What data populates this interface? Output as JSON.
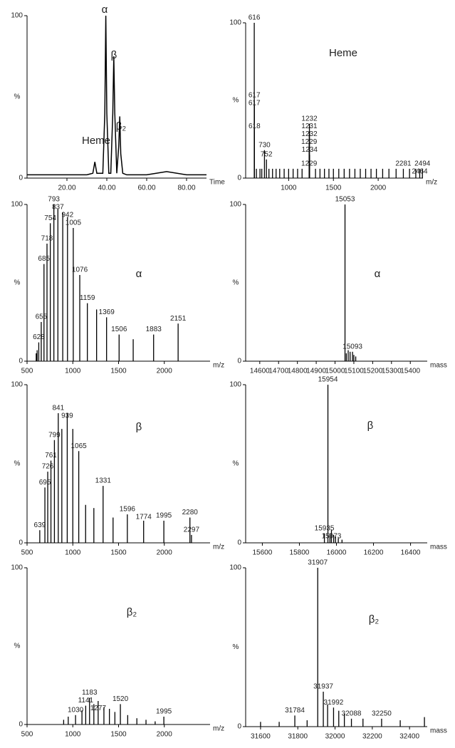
{
  "chart_data": [
    {
      "type": "line",
      "xlabel": "Time",
      "ylabel": "%",
      "annotations": [
        "α",
        "β",
        "β₂",
        "Heme"
      ],
      "xlim": [
        0,
        90
      ],
      "ylim": [
        0,
        100
      ],
      "xticks": [
        {
          "value": 20,
          "label": "20.00"
        },
        {
          "value": 40,
          "label": "40.00"
        },
        {
          "value": 60,
          "label": "60.00"
        },
        {
          "value": 80,
          "label": "80.00"
        }
      ],
      "yticks": [
        0,
        100
      ],
      "series": [
        {
          "color": "#000000",
          "x": [
            0,
            10,
            20,
            30,
            33,
            34,
            35,
            38,
            39,
            39.5,
            40,
            41,
            42,
            43,
            43.5,
            44,
            45,
            46,
            46.5,
            47,
            48,
            50,
            60,
            70,
            80,
            90
          ],
          "values": [
            2,
            2,
            2,
            2,
            3,
            10,
            3,
            3,
            40,
            100,
            40,
            3,
            3,
            40,
            75,
            40,
            3,
            20,
            38,
            15,
            3,
            2,
            2,
            4,
            2,
            2
          ]
        }
      ]
    },
    {
      "type": "stick",
      "xlabel": "m/z",
      "ylabel": "%",
      "annotations": [
        "Heme"
      ],
      "xlim": [
        520,
        2500
      ],
      "ylim": [
        0,
        100
      ],
      "xticks": [
        1000,
        1500,
        2000
      ],
      "yticks": [
        0,
        100
      ],
      "series": [
        {
          "color": "#000000",
          "labeled": true,
          "x": [
            616,
            617,
            617,
            618,
            730,
            752,
            1232,
            1231,
            1232,
            1229,
            1234,
            1229,
            2281,
            2464,
            2494
          ],
          "values": [
            100,
            50,
            48,
            30,
            18,
            12,
            35,
            30,
            30,
            22,
            15,
            6,
            6,
            6,
            6
          ]
        },
        {
          "color": "#000000",
          "labeled": false,
          "x": [
            640,
            680,
            700,
            780,
            820,
            860,
            900,
            950,
            1000,
            1050,
            1100,
            1150,
            1300,
            1350,
            1400,
            1450,
            1500,
            1560,
            1620,
            1680,
            1740,
            1800,
            1860,
            1920,
            1980,
            2050,
            2120,
            2200,
            2350,
            2420
          ],
          "values": [
            6,
            6,
            6,
            6,
            6,
            6,
            6,
            6,
            6,
            6,
            6,
            6,
            6,
            6,
            6,
            6,
            6,
            6,
            6,
            6,
            6,
            6,
            6,
            6,
            6,
            6,
            6,
            6,
            6,
            6
          ]
        }
      ]
    },
    {
      "type": "stick",
      "xlabel": "m/z",
      "ylabel": "%",
      "annotations": [
        "α"
      ],
      "xlim": [
        500,
        2500
      ],
      "ylim": [
        0,
        100
      ],
      "xticks": [
        500,
        1000,
        1500,
        2000
      ],
      "yticks": [
        0,
        100
      ],
      "series": [
        {
          "color": "#000000",
          "labeled": true,
          "x": [
            628,
            655,
            685,
            718,
            754,
            793,
            837,
            942,
            1005,
            1076,
            1159,
            1369,
            1506,
            1883,
            2151
          ],
          "values": [
            12,
            25,
            62,
            75,
            88,
            100,
            97,
            92,
            85,
            55,
            37,
            28,
            17,
            17,
            24
          ]
        },
        {
          "color": "#000000",
          "labeled": false,
          "x": [
            890,
            1260,
            1660,
            600,
            610
          ],
          "values": [
            95,
            33,
            14,
            5,
            7
          ]
        }
      ]
    },
    {
      "type": "stick",
      "xlabel": "mass",
      "ylabel": "%",
      "annotations": [
        "α"
      ],
      "xlim": [
        14525,
        15490
      ],
      "ylim": [
        0,
        100
      ],
      "xticks": [
        14600,
        14700,
        14800,
        14900,
        15000,
        15100,
        15200,
        15300,
        15400
      ],
      "yticks": [
        0,
        100
      ],
      "series": [
        {
          "color": "#000000",
          "labeled": true,
          "x": [
            15053,
            15093
          ],
          "values": [
            100,
            6
          ]
        },
        {
          "color": "#000000",
          "labeled": false,
          "x": [
            15060,
            15070,
            15080,
            15100,
            15110
          ],
          "values": [
            5,
            7,
            6,
            4,
            3
          ]
        }
      ]
    },
    {
      "type": "stick",
      "xlabel": "m/z",
      "ylabel": "%",
      "annotations": [
        "β"
      ],
      "xlim": [
        500,
        2500
      ],
      "ylim": [
        0,
        100
      ],
      "xticks": [
        500,
        1000,
        1500,
        2000
      ],
      "yticks": [
        0,
        100
      ],
      "series": [
        {
          "color": "#000000",
          "labeled": true,
          "x": [
            639,
            695,
            726,
            761,
            799,
            841,
            939,
            1065,
            1331,
            1596,
            1774,
            1995,
            2280,
            2297
          ],
          "values": [
            8,
            35,
            45,
            52,
            65,
            82,
            82,
            58,
            36,
            18,
            14,
            14,
            16,
            5
          ]
        },
        {
          "color": "#000000",
          "labeled": false,
          "x": [
            880,
            1000,
            1140,
            1230,
            1440
          ],
          "values": [
            72,
            72,
            24,
            22,
            16
          ]
        }
      ]
    },
    {
      "type": "stick",
      "xlabel": "mass",
      "ylabel": "%",
      "annotations": [
        "β"
      ],
      "xlim": [
        15510,
        16490
      ],
      "ylim": [
        0,
        100
      ],
      "xticks": [
        15600,
        15800,
        16000,
        16200,
        16400
      ],
      "yticks": [
        0,
        100
      ],
      "series": [
        {
          "color": "#000000",
          "labeled": true,
          "x": [
            15954,
            15935,
            15973
          ],
          "values": [
            100,
            6,
            8
          ]
        },
        {
          "color": "#000000",
          "labeled": false,
          "x": [
            15965,
            15985,
            15995,
            16010,
            16030
          ],
          "values": [
            6,
            5,
            4,
            3,
            2
          ]
        }
      ]
    },
    {
      "type": "stick",
      "xlabel": "m/z",
      "ylabel": "%",
      "annotations": [
        "β₂"
      ],
      "xlim": [
        500,
        2500
      ],
      "ylim": [
        0,
        100
      ],
      "xticks": [
        500,
        1000,
        1500,
        2000
      ],
      "yticks": [
        0,
        100
      ],
      "series": [
        {
          "color": "#000000",
          "labeled": true,
          "x": [
            1030,
            1141,
            1183,
            1277,
            1520,
            1995
          ],
          "values": [
            6,
            12,
            17,
            15,
            13,
            5
          ]
        },
        {
          "color": "#000000",
          "labeled": false,
          "x": [
            900,
            950,
            1100,
            1230,
            1340,
            1400,
            1460,
            1600,
            1700,
            1800,
            1900
          ],
          "values": [
            3,
            5,
            9,
            13,
            11,
            10,
            8,
            6,
            4,
            3,
            2
          ]
        }
      ]
    },
    {
      "type": "stick",
      "xlabel": "mass",
      "ylabel": "%",
      "annotations": [
        "β₂"
      ],
      "xlim": [
        31520,
        32495
      ],
      "ylim": [
        0,
        100
      ],
      "xticks": [
        31600,
        31800,
        32000,
        32200,
        32400
      ],
      "yticks": [
        0,
        100
      ],
      "series": [
        {
          "color": "#000000",
          "labeled": true,
          "x": [
            31907,
            31784,
            31937,
            31992,
            32088,
            32250
          ],
          "values": [
            100,
            7,
            22,
            12,
            5,
            5
          ]
        },
        {
          "color": "#000000",
          "labeled": false,
          "x": [
            31600,
            31700,
            31850,
            31960,
            32020,
            32050,
            32150,
            32350,
            32480
          ],
          "values": [
            3,
            3,
            4,
            14,
            10,
            8,
            5,
            4,
            6
          ]
        }
      ]
    }
  ]
}
